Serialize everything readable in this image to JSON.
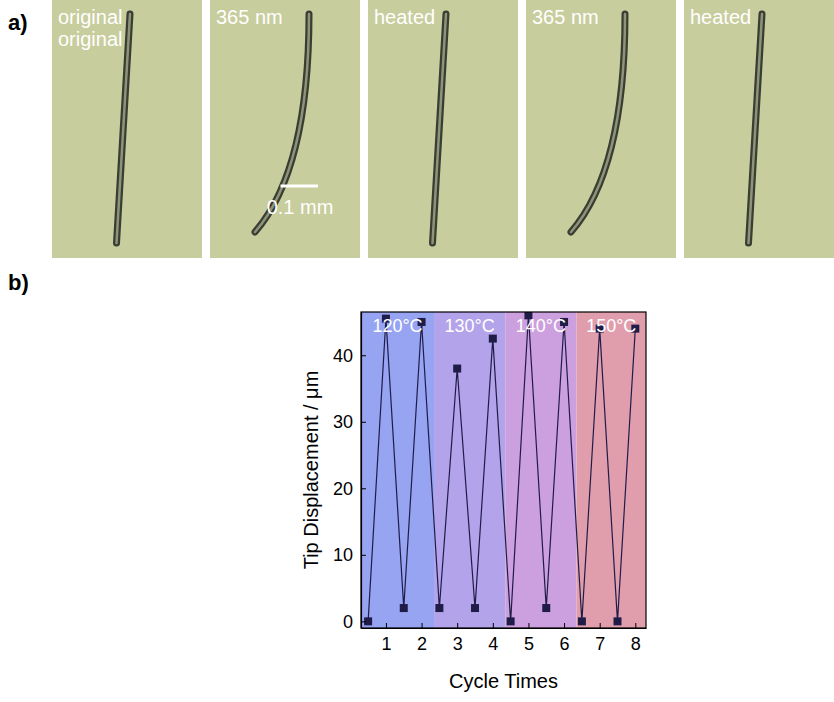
{
  "figure_a": {
    "panel_label": "a)",
    "frames": [
      {
        "label": [
          "original",
          "original"
        ],
        "bent": false
      },
      {
        "label": [
          "365 nm"
        ],
        "bent": true,
        "scale_bar": "0.1 mm"
      },
      {
        "label": [
          "heated"
        ],
        "bent": false
      },
      {
        "label": [
          "365 nm"
        ],
        "bent": true
      },
      {
        "label": [
          "heated"
        ],
        "bent": false
      }
    ]
  },
  "chart_data": {
    "type": "line",
    "panel_label": "b)",
    "x_label": "Cycle Times",
    "y_label": "Tip Displacement / μm",
    "x": [
      0.5,
      1,
      1.5,
      2,
      2.5,
      3,
      3.5,
      4,
      4.5,
      5,
      5.5,
      6,
      6.5,
      7,
      7.5,
      8
    ],
    "series": [
      {
        "name": "tip",
        "color": "#1f1c48",
        "marker": "square",
        "line_style": "solid",
        "values": [
          0,
          45.5,
          2,
          45,
          2,
          38,
          2,
          42.5,
          0,
          46,
          2,
          45,
          0,
          44,
          0,
          44
        ]
      }
    ],
    "xlim": [
      0.3,
      8.3
    ],
    "xticks": [
      1,
      2,
      3,
      4,
      5,
      6,
      7,
      8
    ],
    "ylim": [
      -1,
      46.5
    ],
    "yticks": [
      0,
      10,
      20,
      30,
      40
    ],
    "bands": [
      {
        "label": "120°C",
        "range": [
          0.3,
          2.35
        ],
        "color": "#96a4f2"
      },
      {
        "label": "130°C",
        "range": [
          2.35,
          4.35
        ],
        "color": "#b3a3ea"
      },
      {
        "label": "140°C",
        "range": [
          4.35,
          6.35
        ],
        "color": "#cc9fde"
      },
      {
        "label": "150°C",
        "range": [
          6.35,
          8.3
        ],
        "color": "#e09ead"
      }
    ]
  }
}
